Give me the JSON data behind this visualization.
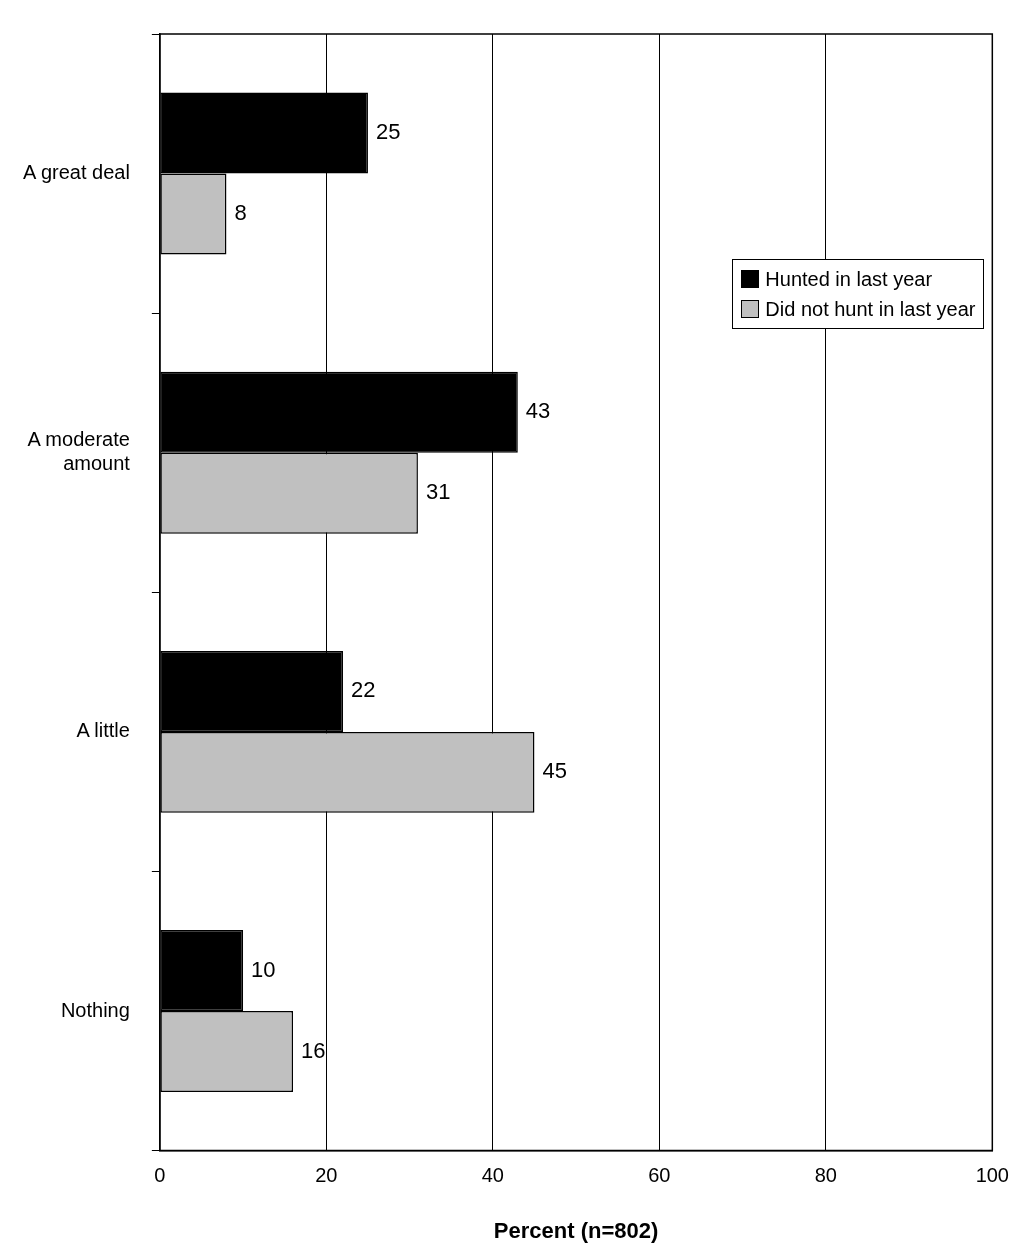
{
  "chart_data": {
    "type": "bar",
    "orientation": "horizontal",
    "xlabel": "Percent (n=802)",
    "categories": [
      "A great deal",
      "A moderate amount",
      "A little",
      "Nothing"
    ],
    "series": [
      {
        "name": "Hunted in last year",
        "color": "#000000",
        "values": [
          25,
          43,
          22,
          10
        ]
      },
      {
        "name": "Did not hunt in last year",
        "color": "#c0c0c0",
        "values": [
          8,
          31,
          45,
          16
        ]
      }
    ],
    "xlim": [
      0,
      100
    ],
    "xticks": [
      0,
      20,
      40,
      60,
      80,
      100
    ],
    "grid": "x",
    "legend": "top right",
    "data_labels": true
  }
}
